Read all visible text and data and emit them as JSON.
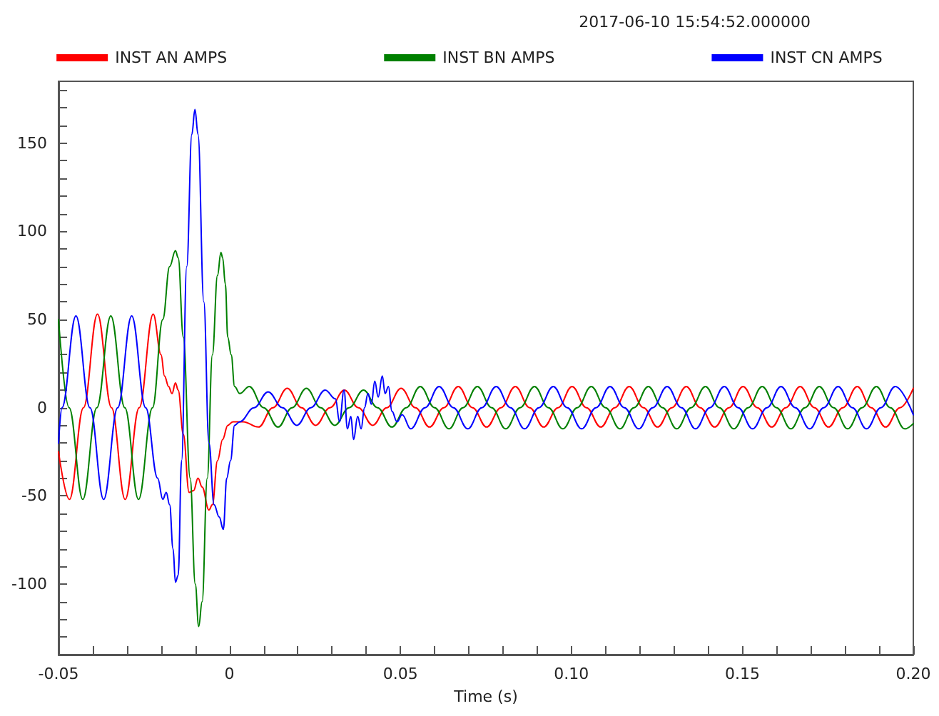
{
  "chart_data": {
    "type": "line",
    "xlabel": "Time (s)",
    "annotations": [
      "2017-06-10 15:54:52.000000"
    ],
    "xlim": [
      -0.05,
      0.2
    ],
    "xticks": [
      -0.05,
      {
        "value": -0.04,
        "label": null
      },
      {
        "value": -0.03,
        "label": null
      },
      {
        "value": -0.02,
        "label": null
      },
      {
        "value": -0.01,
        "label": null
      },
      0,
      {
        "value": 0.01,
        "label": null
      },
      {
        "value": 0.02,
        "label": null
      },
      {
        "value": 0.03,
        "label": null
      },
      {
        "value": 0.04,
        "label": null
      },
      0.05,
      {
        "value": 0.06,
        "label": null
      },
      {
        "value": 0.07,
        "label": null
      },
      {
        "value": 0.08,
        "label": null
      },
      {
        "value": 0.09,
        "label": null
      },
      {
        "value": 0.1,
        "label": "0.10"
      },
      {
        "value": 0.11,
        "label": null
      },
      {
        "value": 0.12,
        "label": null
      },
      {
        "value": 0.13,
        "label": null
      },
      {
        "value": 0.14,
        "label": null
      },
      {
        "value": 0.15,
        "label": "0.15"
      },
      {
        "value": 0.16,
        "label": null
      },
      {
        "value": 0.17,
        "label": null
      },
      {
        "value": 0.18,
        "label": null
      },
      {
        "value": 0.19,
        "label": null
      },
      {
        "value": 0.2,
        "label": "0.20"
      }
    ],
    "ylim": [
      -140,
      185
    ],
    "yticks": [
      {
        "value": -140,
        "label": null
      },
      {
        "value": -130,
        "label": null
      },
      {
        "value": -120,
        "label": null
      },
      {
        "value": -110,
        "label": null
      },
      -100,
      {
        "value": -90,
        "label": null
      },
      {
        "value": -80,
        "label": null
      },
      {
        "value": -70,
        "label": null
      },
      {
        "value": -60,
        "label": null
      },
      -50,
      {
        "value": -40,
        "label": null
      },
      {
        "value": -30,
        "label": null
      },
      {
        "value": -20,
        "label": null
      },
      {
        "value": -10,
        "label": null
      },
      0,
      {
        "value": 10,
        "label": null
      },
      {
        "value": 20,
        "label": null
      },
      {
        "value": 30,
        "label": null
      },
      {
        "value": 40,
        "label": null
      },
      50,
      {
        "value": 60,
        "label": null
      },
      {
        "value": 70,
        "label": null
      },
      {
        "value": 80,
        "label": null
      },
      {
        "value": 90,
        "label": null
      },
      100,
      {
        "value": 110,
        "label": null
      },
      {
        "value": 120,
        "label": null
      },
      {
        "value": 130,
        "label": null
      },
      {
        "value": 140,
        "label": null
      },
      150,
      {
        "value": 160,
        "label": null
      },
      {
        "value": 170,
        "label": null
      },
      {
        "value": 180,
        "label": null
      }
    ],
    "grid": false,
    "legend": "top",
    "marker": "none",
    "line_style": "solid",
    "series": [
      {
        "name": "INST AN AMPS",
        "color": "#ff0000",
        "x": [
          -0.05,
          -0.0468,
          -0.0427,
          -0.0386,
          -0.0345,
          -0.0305,
          -0.0264,
          -0.0223,
          -0.02,
          -0.019,
          -0.0178,
          -0.0168,
          -0.0158,
          -0.015,
          -0.0135,
          -0.0118,
          -0.0105,
          -0.0092,
          -0.008,
          -0.006,
          -0.005,
          -0.0035,
          -0.002,
          -0.0005,
          0.001,
          0.004,
          0.0085,
          0.0127,
          0.0169,
          0.0211,
          0.0252,
          0.0294,
          0.0336,
          0.0377,
          0.0419,
          0.046,
          0.0502,
          0.0544,
          0.0585,
          0.0627,
          0.0669,
          0.0711,
          0.0752,
          0.0794,
          0.0836,
          0.0878,
          0.0919,
          0.0961,
          0.1002,
          0.1044,
          0.1086,
          0.1127,
          0.1169,
          0.1211,
          0.1252,
          0.1294,
          0.1336,
          0.1377,
          0.1419,
          0.1461,
          0.1502,
          0.1544,
          0.1586,
          0.1627,
          0.1669,
          0.1711,
          0.1752,
          0.1794,
          0.1836,
          0.1877,
          0.1919,
          0.1961,
          0.2
        ],
        "values": [
          -25,
          -52,
          0,
          53,
          0,
          -52,
          0,
          53,
          30,
          18,
          12,
          8,
          14,
          10,
          -15,
          -48,
          -47,
          -40,
          -45,
          -58,
          -55,
          -30,
          -18,
          -10,
          -8,
          -8,
          -11,
          0,
          11,
          0,
          -10,
          0,
          10,
          0,
          -10,
          0,
          11,
          0,
          -11,
          0,
          12,
          0,
          -11,
          0,
          12,
          0,
          -11,
          0,
          12,
          0,
          -11,
          0,
          12,
          0,
          -11,
          0,
          12,
          0,
          -11,
          0,
          12,
          0,
          -11,
          0,
          12,
          0,
          -11,
          0,
          12,
          0,
          -11,
          0,
          11
        ]
      },
      {
        "name": "INST BN AMPS",
        "color": "#008000",
        "x": [
          -0.05,
          -0.0469,
          -0.0429,
          -0.0388,
          -0.0347,
          -0.0306,
          -0.0266,
          -0.0225,
          -0.0195,
          -0.0175,
          -0.0158,
          -0.015,
          -0.0135,
          -0.0115,
          -0.01,
          -0.009,
          -0.008,
          -0.0065,
          -0.005,
          -0.0035,
          -0.0025,
          -0.002,
          -0.0012,
          -0.0005,
          0.0005,
          0.0015,
          0.003,
          0.0058,
          0.01,
          0.0142,
          0.0183,
          0.0225,
          0.0267,
          0.0308,
          0.035,
          0.0392,
          0.0433,
          0.0475,
          0.0517,
          0.0558,
          0.06,
          0.0642,
          0.0683,
          0.0725,
          0.0767,
          0.0808,
          0.085,
          0.0892,
          0.0933,
          0.0975,
          0.1017,
          0.1058,
          0.11,
          0.1142,
          0.1183,
          0.1225,
          0.1267,
          0.1308,
          0.135,
          0.1392,
          0.1433,
          0.1475,
          0.1517,
          0.1558,
          0.16,
          0.1642,
          0.1683,
          0.1725,
          0.1767,
          0.1808,
          0.185,
          0.1892,
          0.1933,
          0.1975,
          0.2
        ],
        "values": [
          50,
          0,
          -52,
          0,
          52,
          0,
          -52,
          0,
          50,
          80,
          89,
          85,
          40,
          -40,
          -100,
          -124,
          -110,
          -40,
          30,
          75,
          88,
          85,
          70,
          40,
          30,
          12,
          8,
          12,
          0,
          -11,
          0,
          11,
          0,
          -10,
          0,
          10,
          0,
          -11,
          0,
          12,
          0,
          -12,
          0,
          12,
          0,
          -12,
          0,
          12,
          0,
          -12,
          0,
          12,
          0,
          -12,
          0,
          12,
          0,
          -12,
          0,
          12,
          0,
          -12,
          0,
          12,
          0,
          -12,
          0,
          12,
          0,
          -12,
          0,
          12,
          0,
          -12,
          -9
        ]
      },
      {
        "name": "INST CN AMPS",
        "color": "#0000ff",
        "x": [
          -0.05,
          -0.049,
          -0.0449,
          -0.0408,
          -0.0368,
          -0.0327,
          -0.0286,
          -0.0245,
          -0.021,
          -0.0195,
          -0.0185,
          -0.0175,
          -0.0165,
          -0.0158,
          -0.015,
          -0.014,
          -0.0125,
          -0.011,
          -0.0101,
          -0.0092,
          -0.0075,
          -0.006,
          -0.0045,
          -0.003,
          -0.0018,
          -0.0008,
          0.0003,
          0.0015,
          0.003,
          0.0072,
          0.0113,
          0.0155,
          0.0197,
          0.0238,
          0.028,
          0.031,
          0.0322,
          0.0335,
          0.0345,
          0.0355,
          0.0363,
          0.0375,
          0.0385,
          0.0395,
          0.0405,
          0.0415,
          0.0425,
          0.0435,
          0.0447,
          0.0455,
          0.0465,
          0.0475,
          0.049,
          0.0505,
          0.053,
          0.0572,
          0.0613,
          0.0655,
          0.0697,
          0.0738,
          0.078,
          0.0822,
          0.0863,
          0.0905,
          0.0947,
          0.0988,
          0.103,
          0.1072,
          0.1113,
          0.1155,
          0.1197,
          0.1238,
          0.128,
          0.1322,
          0.1363,
          0.1405,
          0.1447,
          0.1488,
          0.153,
          0.1572,
          0.1613,
          0.1655,
          0.1697,
          0.1738,
          0.178,
          0.1822,
          0.1863,
          0.1905,
          0.1947,
          0.2
        ],
        "values": [
          -20,
          0,
          52,
          0,
          -52,
          0,
          52,
          0,
          -40,
          -52,
          -48,
          -55,
          -80,
          -99,
          -95,
          -30,
          80,
          155,
          169,
          155,
          60,
          -20,
          -55,
          -62,
          -69,
          -40,
          -30,
          -10,
          -8,
          0,
          9,
          0,
          -10,
          0,
          10,
          5,
          -8,
          10,
          -12,
          -5,
          -18,
          -5,
          -12,
          0,
          8,
          2,
          15,
          6,
          18,
          8,
          12,
          -2,
          -8,
          -4,
          -12,
          0,
          12,
          0,
          -12,
          0,
          12,
          0,
          -12,
          0,
          12,
          0,
          -12,
          0,
          12,
          0,
          -12,
          0,
          12,
          0,
          -12,
          0,
          12,
          0,
          -12,
          0,
          12,
          0,
          -12,
          0,
          12,
          0,
          -12,
          0,
          12,
          -4
        ]
      }
    ]
  }
}
